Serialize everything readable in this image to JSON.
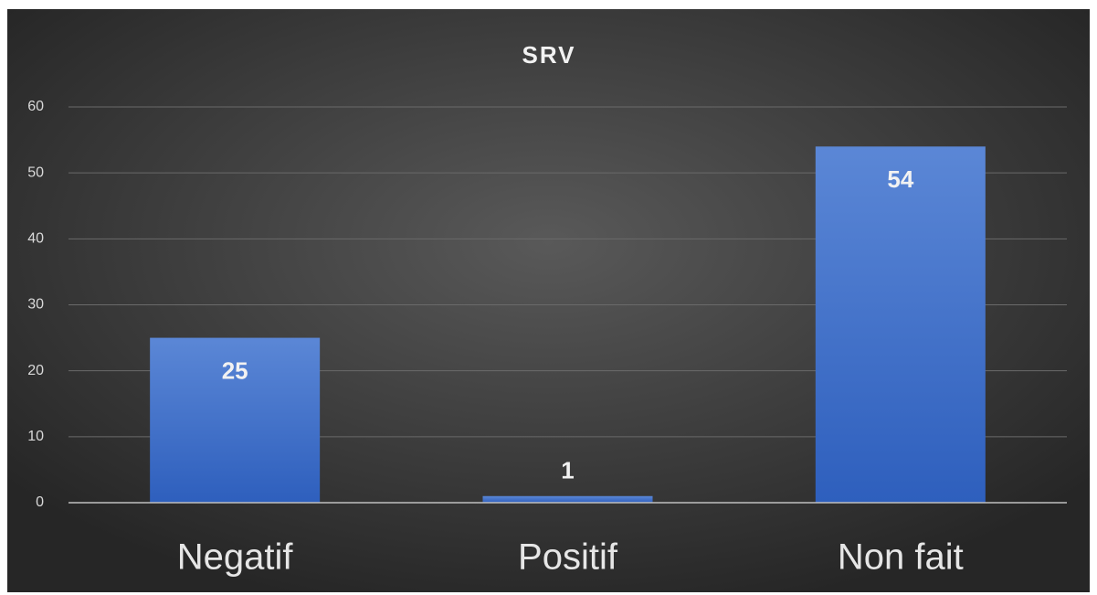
{
  "chart_data": {
    "type": "bar",
    "title": "SRV",
    "categories": [
      "Negatif",
      "Positif",
      "Non fait"
    ],
    "values": [
      25,
      1,
      54
    ],
    "color": "#4472c4",
    "ylim": [
      0,
      60
    ],
    "yticks": [
      0,
      10,
      20,
      30,
      40,
      50,
      60
    ],
    "grid": true
  }
}
